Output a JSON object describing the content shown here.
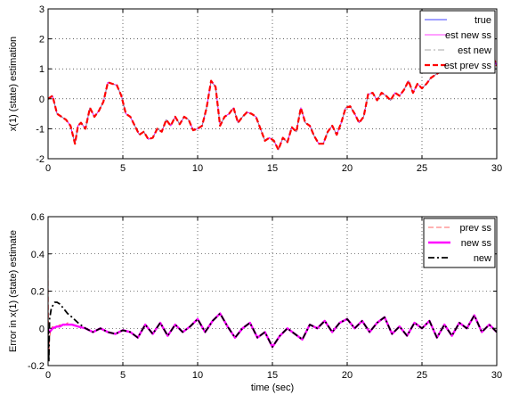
{
  "chart_data": [
    {
      "type": "line",
      "title": "",
      "xlabel": "",
      "ylabel": "x(1) (state) estimation",
      "xlim": [
        0,
        30
      ],
      "ylim": [
        -2,
        3
      ],
      "xticks": [
        0,
        5,
        10,
        15,
        20,
        25,
        30
      ],
      "yticks": [
        -2,
        -1,
        0,
        1,
        2,
        3
      ],
      "xtick_labels": [
        "0",
        "5",
        "10",
        "15",
        "20",
        "25",
        "30"
      ],
      "ytick_labels": [
        "-2",
        "-1",
        "0",
        "1",
        "2",
        "3"
      ],
      "grid": true,
      "legend_position": "top-right",
      "x": [
        0,
        0.3,
        0.6,
        0.9,
        1.2,
        1.5,
        1.8,
        2.0,
        2.2,
        2.5,
        2.8,
        3.1,
        3.4,
        3.7,
        4.0,
        4.3,
        4.6,
        4.9,
        5.2,
        5.5,
        5.8,
        6.1,
        6.4,
        6.7,
        7.0,
        7.3,
        7.6,
        7.9,
        8.2,
        8.5,
        8.8,
        9.1,
        9.4,
        9.7,
        10.0,
        10.3,
        10.6,
        10.9,
        11.2,
        11.5,
        11.8,
        12.1,
        12.4,
        12.7,
        13.0,
        13.3,
        13.6,
        13.9,
        14.2,
        14.5,
        14.8,
        15.1,
        15.4,
        15.7,
        16.0,
        16.3,
        16.6,
        16.9,
        17.2,
        17.5,
        17.8,
        18.1,
        18.4,
        18.7,
        19.0,
        19.3,
        19.6,
        19.9,
        20.2,
        20.5,
        20.8,
        21.1,
        21.4,
        21.7,
        22.0,
        22.3,
        22.6,
        22.9,
        23.2,
        23.5,
        23.8,
        24.1,
        24.4,
        24.7,
        25.0,
        25.3,
        25.6,
        25.9,
        26.2,
        26.5,
        26.8,
        27.1,
        27.4,
        27.7,
        28.0,
        28.3,
        28.6,
        28.9,
        29.2,
        29.5,
        29.8,
        30.0
      ],
      "series": [
        {
          "name": "true",
          "color": "#0000ff",
          "style": "solid",
          "width": 0.8,
          "values": [
            0,
            0.1,
            -0.5,
            -0.6,
            -0.7,
            -0.9,
            -1.5,
            -0.9,
            -0.8,
            -1.0,
            -0.3,
            -0.6,
            -0.4,
            -0.1,
            0.55,
            0.5,
            0.45,
            0.1,
            -0.5,
            -0.6,
            -0.9,
            -1.2,
            -1.1,
            -1.35,
            -1.3,
            -1.0,
            -1.1,
            -0.7,
            -0.9,
            -0.6,
            -0.85,
            -0.6,
            -0.7,
            -1.05,
            -1.0,
            -0.9,
            -0.3,
            0.6,
            0.4,
            -0.9,
            -0.6,
            -0.5,
            -0.3,
            -0.8,
            -0.6,
            -0.45,
            -0.5,
            -0.6,
            -1.0,
            -1.4,
            -1.3,
            -1.4,
            -1.7,
            -1.3,
            -1.45,
            -0.95,
            -1.1,
            -0.3,
            -0.8,
            -0.9,
            -1.25,
            -1.5,
            -1.5,
            -1.1,
            -0.9,
            -1.2,
            -0.8,
            -0.3,
            -0.25,
            -0.5,
            -0.8,
            -0.6,
            0.15,
            0.2,
            -0.05,
            0.2,
            0.1,
            -0.05,
            0.2,
            0.1,
            0.3,
            0.6,
            0.2,
            0.5,
            0.35,
            0.5,
            0.7,
            0.8,
            0.9,
            1.0,
            1.0,
            0.95,
            1.1,
            1.4,
            1.2,
            1.35,
            1.3,
            1.25,
            1.0,
            1.1,
            1.35,
            1.1
          ]
        },
        {
          "name": "est new ss",
          "color": "#ff00ff",
          "style": "solid",
          "width": 0.8,
          "values": [
            0,
            0.1,
            -0.5,
            -0.6,
            -0.7,
            -0.9,
            -1.5,
            -0.9,
            -0.8,
            -1.0,
            -0.3,
            -0.6,
            -0.4,
            -0.1,
            0.55,
            0.5,
            0.45,
            0.1,
            -0.5,
            -0.6,
            -0.9,
            -1.2,
            -1.1,
            -1.35,
            -1.3,
            -1.0,
            -1.1,
            -0.7,
            -0.9,
            -0.6,
            -0.85,
            -0.6,
            -0.7,
            -1.05,
            -1.0,
            -0.9,
            -0.3,
            0.6,
            0.4,
            -0.9,
            -0.6,
            -0.5,
            -0.3,
            -0.8,
            -0.6,
            -0.45,
            -0.5,
            -0.6,
            -1.0,
            -1.4,
            -1.3,
            -1.4,
            -1.7,
            -1.3,
            -1.45,
            -0.95,
            -1.1,
            -0.3,
            -0.8,
            -0.9,
            -1.25,
            -1.5,
            -1.5,
            -1.1,
            -0.9,
            -1.2,
            -0.8,
            -0.3,
            -0.25,
            -0.5,
            -0.8,
            -0.6,
            0.15,
            0.2,
            -0.05,
            0.2,
            0.1,
            -0.05,
            0.2,
            0.1,
            0.3,
            0.6,
            0.2,
            0.5,
            0.35,
            0.5,
            0.7,
            0.8,
            0.9,
            1.0,
            1.0,
            0.95,
            1.1,
            1.4,
            1.2,
            1.35,
            1.3,
            1.25,
            1.0,
            1.1,
            1.35,
            1.1
          ]
        },
        {
          "name": "est new",
          "color": "#8a8a8a",
          "style": "dashdot",
          "width": 0.8,
          "values": [
            0,
            0.1,
            -0.5,
            -0.6,
            -0.7,
            -0.9,
            -1.5,
            -0.9,
            -0.8,
            -1.0,
            -0.3,
            -0.6,
            -0.4,
            -0.1,
            0.55,
            0.5,
            0.45,
            0.1,
            -0.5,
            -0.6,
            -0.9,
            -1.2,
            -1.1,
            -1.35,
            -1.3,
            -1.0,
            -1.1,
            -0.7,
            -0.9,
            -0.6,
            -0.85,
            -0.6,
            -0.7,
            -1.05,
            -1.0,
            -0.9,
            -0.3,
            0.6,
            0.4,
            -0.9,
            -0.6,
            -0.5,
            -0.3,
            -0.8,
            -0.6,
            -0.45,
            -0.5,
            -0.6,
            -1.0,
            -1.4,
            -1.3,
            -1.4,
            -1.7,
            -1.3,
            -1.45,
            -0.95,
            -1.1,
            -0.3,
            -0.8,
            -0.9,
            -1.25,
            -1.5,
            -1.5,
            -1.1,
            -0.9,
            -1.2,
            -0.8,
            -0.3,
            -0.25,
            -0.5,
            -0.8,
            -0.6,
            0.15,
            0.2,
            -0.05,
            0.2,
            0.1,
            -0.05,
            0.2,
            0.1,
            0.3,
            0.6,
            0.2,
            0.5,
            0.35,
            0.5,
            0.7,
            0.8,
            0.9,
            1.0,
            1.0,
            0.95,
            1.1,
            1.4,
            1.2,
            1.35,
            1.3,
            1.25,
            1.0,
            1.1,
            1.35,
            1.1
          ]
        },
        {
          "name": "est prev ss",
          "color": "#ff0000",
          "style": "dashed",
          "width": 2.2,
          "values": [
            0,
            0.1,
            -0.5,
            -0.6,
            -0.7,
            -0.9,
            -1.5,
            -0.9,
            -0.8,
            -1.0,
            -0.3,
            -0.6,
            -0.4,
            -0.1,
            0.55,
            0.5,
            0.45,
            0.1,
            -0.5,
            -0.6,
            -0.9,
            -1.2,
            -1.1,
            -1.35,
            -1.3,
            -1.0,
            -1.1,
            -0.7,
            -0.9,
            -0.6,
            -0.85,
            -0.6,
            -0.7,
            -1.05,
            -1.0,
            -0.9,
            -0.3,
            0.6,
            0.4,
            -0.9,
            -0.6,
            -0.5,
            -0.3,
            -0.8,
            -0.6,
            -0.45,
            -0.5,
            -0.6,
            -1.0,
            -1.4,
            -1.3,
            -1.4,
            -1.7,
            -1.3,
            -1.45,
            -0.95,
            -1.1,
            -0.3,
            -0.8,
            -0.9,
            -1.25,
            -1.5,
            -1.5,
            -1.1,
            -0.9,
            -1.2,
            -0.8,
            -0.3,
            -0.25,
            -0.5,
            -0.8,
            -0.6,
            0.15,
            0.2,
            -0.05,
            0.2,
            0.1,
            -0.05,
            0.2,
            0.1,
            0.3,
            0.6,
            0.2,
            0.5,
            0.35,
            0.5,
            0.7,
            0.8,
            0.9,
            1.0,
            1.0,
            0.95,
            1.1,
            1.4,
            1.2,
            1.35,
            1.3,
            1.25,
            1.0,
            1.1,
            1.35,
            1.1
          ]
        }
      ]
    },
    {
      "type": "line",
      "title": "",
      "xlabel": "time (sec)",
      "ylabel": "Error in x(1) (state) estimate",
      "xlim": [
        0,
        30
      ],
      "ylim": [
        -0.2,
        0.6
      ],
      "xticks": [
        0,
        5,
        10,
        15,
        20,
        25,
        30
      ],
      "yticks": [
        -0.2,
        0,
        0.2,
        0.4,
        0.6
      ],
      "xtick_labels": [
        "0",
        "5",
        "10",
        "15",
        "20",
        "25",
        "30"
      ],
      "ytick_labels": [
        "-0.2",
        "0",
        "0.2",
        "0.4",
        "0.6"
      ],
      "grid": true,
      "legend_position": "top-right",
      "x": [
        0,
        0.05,
        0.1,
        0.2,
        0.3,
        0.45,
        0.6,
        0.8,
        1.0,
        1.3,
        1.6,
        2.0,
        2.5,
        3.0,
        3.5,
        4.0,
        4.5,
        5.0,
        5.5,
        6.0,
        6.5,
        7.0,
        7.5,
        8.0,
        8.5,
        9.0,
        9.5,
        10.0,
        10.5,
        11.0,
        11.5,
        12.0,
        12.5,
        13.0,
        13.5,
        14.0,
        14.5,
        15.0,
        15.5,
        16.0,
        16.5,
        17.0,
        17.5,
        18.0,
        18.5,
        19.0,
        19.5,
        20.0,
        20.5,
        21.0,
        21.5,
        22.0,
        22.5,
        23.0,
        23.5,
        24.0,
        24.5,
        25.0,
        25.5,
        26.0,
        26.5,
        27.0,
        27.5,
        28.0,
        28.5,
        29.0,
        29.5,
        30.0
      ],
      "series": [
        {
          "name": "prev ss",
          "color": "#ff6666",
          "style": "dashed",
          "width": 1.0,
          "values": [
            0.3,
            -0.15,
            -0.05,
            0.0,
            0.01,
            0.0,
            0.01,
            0.02,
            0.01,
            0.03,
            0.02,
            0.01,
            0.0,
            -0.02,
            0.0,
            -0.02,
            -0.03,
            -0.01,
            -0.02,
            -0.05,
            0.02,
            -0.03,
            0.03,
            -0.04,
            0.02,
            -0.02,
            0.01,
            0.05,
            -0.02,
            0.04,
            0.08,
            0.01,
            -0.05,
            0.0,
            0.03,
            -0.05,
            -0.02,
            -0.1,
            -0.04,
            0.0,
            -0.03,
            -0.06,
            0.02,
            0.0,
            0.04,
            -0.02,
            0.03,
            0.05,
            0.0,
            0.04,
            -0.02,
            0.03,
            0.06,
            -0.03,
            0.01,
            -0.04,
            0.03,
            0.0,
            0.04,
            -0.05,
            0.02,
            -0.04,
            0.03,
            0.0,
            0.07,
            -0.02,
            0.02,
            -0.02
          ]
        },
        {
          "name": "new ss",
          "color": "#ff00ff",
          "style": "solid",
          "width": 2.4,
          "values": [
            0.0,
            -0.02,
            -0.02,
            -0.01,
            0.0,
            0.005,
            0.01,
            0.01,
            0.02,
            0.02,
            0.02,
            0.01,
            0.0,
            -0.02,
            0.0,
            -0.02,
            -0.03,
            -0.01,
            -0.02,
            -0.05,
            0.02,
            -0.03,
            0.03,
            -0.04,
            0.02,
            -0.02,
            0.01,
            0.05,
            -0.02,
            0.04,
            0.08,
            0.01,
            -0.05,
            0.0,
            0.03,
            -0.05,
            -0.02,
            -0.1,
            -0.04,
            0.0,
            -0.03,
            -0.06,
            0.02,
            0.0,
            0.04,
            -0.02,
            0.03,
            0.05,
            0.0,
            0.04,
            -0.02,
            0.03,
            0.06,
            -0.03,
            0.01,
            -0.04,
            0.03,
            0.0,
            0.04,
            -0.05,
            0.02,
            -0.04,
            0.03,
            0.0,
            0.07,
            -0.02,
            0.02,
            -0.02
          ]
        },
        {
          "name": "new",
          "color": "#000000",
          "style": "dashdot",
          "width": 1.8,
          "values": [
            0.0,
            -0.18,
            0.05,
            0.1,
            0.12,
            0.14,
            0.14,
            0.13,
            0.11,
            0.08,
            0.06,
            0.03,
            0.0,
            -0.02,
            0.0,
            -0.02,
            -0.03,
            -0.01,
            -0.02,
            -0.05,
            0.02,
            -0.03,
            0.03,
            -0.04,
            0.02,
            -0.02,
            0.01,
            0.05,
            -0.02,
            0.04,
            0.08,
            0.01,
            -0.05,
            0.0,
            0.03,
            -0.05,
            -0.02,
            -0.1,
            -0.04,
            0.0,
            -0.03,
            -0.06,
            0.02,
            0.0,
            0.04,
            -0.02,
            0.03,
            0.05,
            0.0,
            0.04,
            -0.02,
            0.03,
            0.06,
            -0.03,
            0.01,
            -0.04,
            0.03,
            0.0,
            0.04,
            -0.05,
            0.02,
            -0.04,
            0.03,
            0.0,
            0.07,
            -0.02,
            0.02,
            -0.02
          ]
        }
      ]
    }
  ]
}
